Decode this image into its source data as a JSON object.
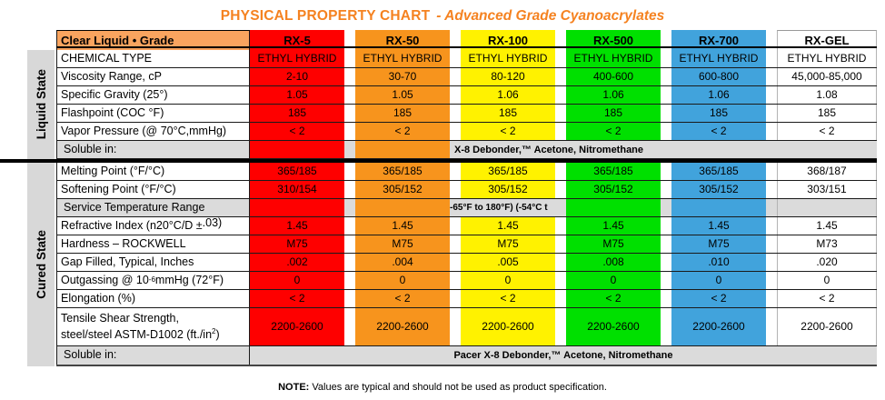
{
  "title": {
    "main": "PHYSICAL PROPERTY CHART",
    "subtitle": "- Advanced Grade Cyanoacrylates"
  },
  "header": {
    "label": "Clear Liquid • Grade",
    "grades": [
      "RX-5",
      "RX-50",
      "RX-100",
      "RX-500",
      "RX-700",
      "RX-GEL"
    ]
  },
  "colors": {
    "title_orange": "#F58220",
    "header_label_bg": "#F9A45F",
    "rx5": "#FE0000",
    "rx50": "#F7941D",
    "rx100": "#FFF200",
    "rx500": "#00E000",
    "rx700": "#41A3DC",
    "rxgel": "#FFFFFF",
    "gray_row": "#DBDBDB",
    "state_bar": "#D8D8D8"
  },
  "sections": {
    "liquid": "Liquid State",
    "cured": "Cured State"
  },
  "rows": {
    "chemical": {
      "label": "CHEMICAL TYPE",
      "values": [
        "ETHYL HYBRID",
        "ETHYL HYBRID",
        "ETHYL HYBRID",
        "ETHYL HYBRID",
        "ETHYL HYBRID",
        "ETHYL HYBRID"
      ]
    },
    "viscosity": {
      "label": "Viscosity Range, cP",
      "values": [
        "2-10",
        "30-70",
        "80-120",
        "400-600",
        "600-800",
        "45,000-85,000"
      ]
    },
    "gravity": {
      "label": "Specific Gravity (25°)",
      "values": [
        "1.05",
        "1.05",
        "1.06",
        "1.06",
        "1.06",
        "1.08"
      ]
    },
    "flashpoint": {
      "label": "Flashpoint (COC °F)",
      "values": [
        "185",
        "185",
        "185",
        "185",
        "185",
        "185"
      ]
    },
    "vapor": {
      "label": "Vapor Pressure (@ 70°C,mmHg)",
      "values": [
        "< 2",
        "< 2",
        "< 2",
        "< 2",
        "< 2",
        "< 2"
      ]
    },
    "soluble_liquid": {
      "label": "Soluble in:",
      "text": "X-8 Debonder,™ Acetone, Nitromethane"
    },
    "melting": {
      "label": "Melting Point (°F/°C)",
      "values": [
        "365/185",
        "365/185",
        "365/185",
        "365/185",
        "365/185",
        "368/187"
      ]
    },
    "softening": {
      "label": "Softening Point (°F/°C)",
      "values": [
        "310/154",
        "305/152",
        "305/152",
        "305/152",
        "305/152",
        "303/151"
      ]
    },
    "service": {
      "label": "Service Temperature Range",
      "text": "-65°F to 180°F)  (-54°C t"
    },
    "refractive": {
      "label_pre": "Refractive Index (n20°C/D ± ",
      "label_sup": ".03)",
      "values": [
        "1.45",
        "1.45",
        "1.45",
        "1.45",
        "1.45",
        "1.45"
      ]
    },
    "hardness": {
      "label": "Hardness – ROCKWELL",
      "values": [
        "M75",
        "M75",
        "M75",
        "M75",
        "M75",
        "M73"
      ]
    },
    "gapfill": {
      "label": "Gap Filled, Typical, Inches",
      "values": [
        ".002",
        ".004",
        ".005",
        ".008",
        ".010",
        ".020"
      ]
    },
    "outgassing": {
      "label_pre": "Outgassing @ 10",
      "label_sup": "-6",
      "label_post": " mmHg (72°F)",
      "values": [
        "0",
        "0",
        "0",
        "0",
        "0",
        "0"
      ]
    },
    "elongation": {
      "label": "Elongation (%)",
      "values": [
        "< 2",
        "< 2",
        "< 2",
        "< 2",
        "< 2",
        "< 2"
      ]
    },
    "tensile": {
      "label_line1": "Tensile Shear Strength,",
      "label_line2": "steel/steel ASTM-D1002 (ft./in",
      "label_sup": "2",
      "label_close": ")",
      "values": [
        "2200-2600",
        "2200-2600",
        "2200-2600",
        "2200-2600",
        "2200-2600",
        "2200-2600"
      ]
    },
    "soluble_cured": {
      "label": "Soluble in:",
      "text": "Pacer X-8 Debonder,™ Acetone, Nitromethane"
    }
  },
  "note": {
    "label": "NOTE:",
    "text": " Values are typical and should not be used as product specification."
  }
}
